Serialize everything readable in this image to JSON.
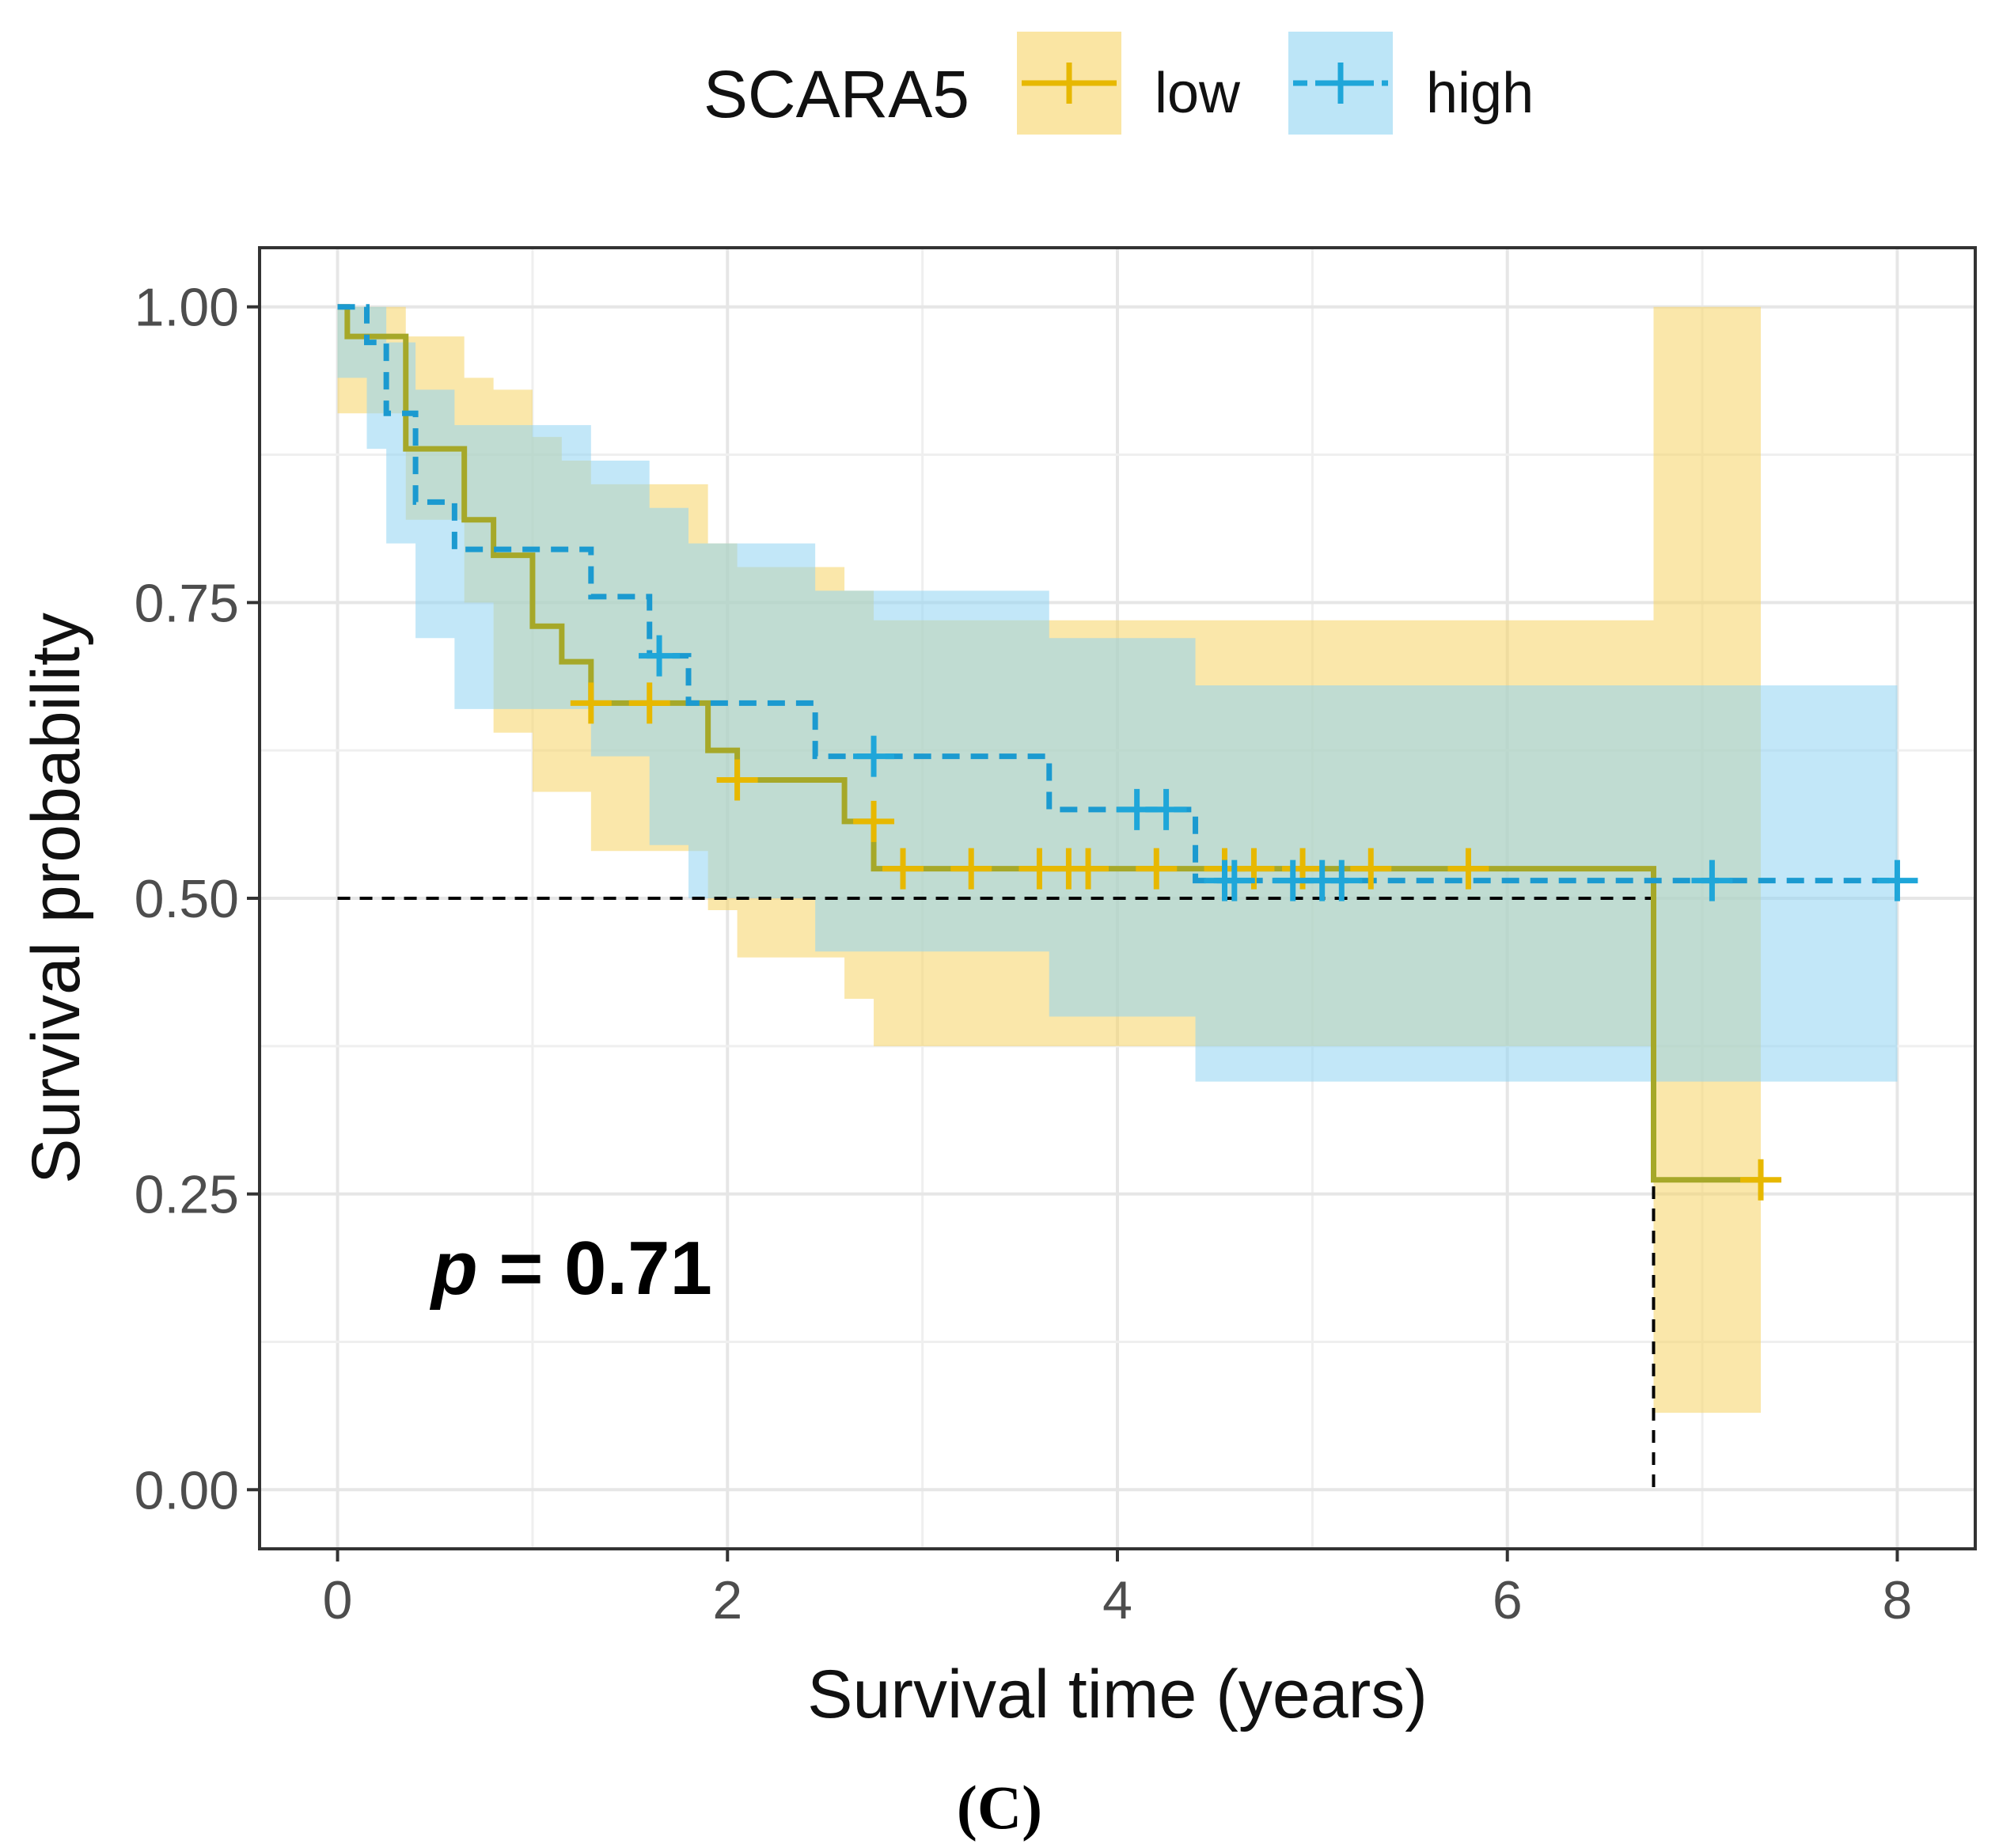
{
  "chart_data": {
    "type": "line",
    "subtype": "kaplan-meier",
    "xlabel": "Survival time (years)",
    "ylabel": "Survival probability",
    "xlim": [
      -0.4,
      8.4
    ],
    "ylim": [
      -0.05,
      1.05
    ],
    "x_ticks": [
      0,
      2,
      4,
      6,
      8
    ],
    "x_tick_labels": [
      "0",
      "2",
      "4",
      "6",
      "8"
    ],
    "y_ticks": [
      0,
      0.25,
      0.5,
      0.75,
      1
    ],
    "y_tick_labels": [
      "0.00",
      "0.25",
      "0.50",
      "0.75",
      "1.00"
    ],
    "grid": true,
    "legend": {
      "title": "SCARA5",
      "position": "top",
      "entries": [
        "low",
        "high"
      ]
    },
    "annotation": "p = 0.71",
    "annotation_italic": "p",
    "annotation_rest": " = 0.71",
    "panel_label": "(C)",
    "median_reference": {
      "y": 0.5,
      "x_end_low": 6.75
    },
    "series": [
      {
        "name": "low",
        "color": "#E7B800",
        "line_color": "#A6A829",
        "band_color": "#F6D365",
        "line_style": "solid",
        "x": [
          0,
          0.05,
          0.35,
          0.65,
          0.8,
          1.0,
          1.15,
          1.3,
          1.9,
          2.05,
          2.6,
          2.75,
          2.85,
          6.75,
          7.3
        ],
        "y": [
          1.0,
          0.975,
          0.88,
          0.82,
          0.79,
          0.73,
          0.7,
          0.665,
          0.625,
          0.6,
          0.565,
          0.525,
          0.525,
          0.262,
          0.262
        ],
        "lower": [
          0.91,
          0.91,
          0.82,
          0.75,
          0.64,
          0.59,
          0.59,
          0.54,
          0.49,
          0.45,
          0.415,
          0.375,
          0.375,
          0.065,
          0.065
        ],
        "upper": [
          1.0,
          1.0,
          0.975,
          0.94,
          0.93,
          0.89,
          0.87,
          0.85,
          0.8,
          0.78,
          0.76,
          0.735,
          0.735,
          1.0,
          1.0
        ],
        "censor_x": [
          1.3,
          1.6,
          2.05,
          2.75,
          2.9,
          3.25,
          3.6,
          3.75,
          3.85,
          4.2,
          4.55,
          4.7,
          4.95,
          5.3,
          5.8,
          7.3
        ],
        "censor_y": [
          0.665,
          0.665,
          0.6,
          0.565,
          0.525,
          0.525,
          0.525,
          0.525,
          0.525,
          0.525,
          0.525,
          0.525,
          0.525,
          0.525,
          0.525,
          0.262
        ]
      },
      {
        "name": "high",
        "color": "#1FA6D9",
        "line_color": "#1B9AD0",
        "band_color": "#8FD3F2",
        "line_style": "dashed",
        "x": [
          0,
          0.15,
          0.25,
          0.4,
          0.6,
          1.3,
          1.6,
          1.8,
          2.45,
          2.8,
          3.65,
          4.4,
          4.55,
          8.0
        ],
        "y": [
          1.0,
          0.97,
          0.91,
          0.835,
          0.795,
          0.755,
          0.705,
          0.665,
          0.62,
          0.62,
          0.575,
          0.515,
          0.515,
          0.515
        ],
        "lower": [
          0.94,
          0.88,
          0.8,
          0.72,
          0.66,
          0.62,
          0.545,
          0.5,
          0.455,
          0.455,
          0.4,
          0.345,
          0.345,
          0.345
        ],
        "upper": [
          1.0,
          1.0,
          0.97,
          0.93,
          0.9,
          0.87,
          0.83,
          0.8,
          0.76,
          0.76,
          0.72,
          0.68,
          0.68,
          0.68
        ],
        "censor_x": [
          1.65,
          2.75,
          4.1,
          4.25,
          4.55,
          4.6,
          4.9,
          5.05,
          5.15,
          7.05,
          8.0
        ],
        "censor_y": [
          0.705,
          0.62,
          0.575,
          0.575,
          0.515,
          0.515,
          0.515,
          0.515,
          0.515,
          0.515,
          0.515
        ]
      }
    ]
  }
}
